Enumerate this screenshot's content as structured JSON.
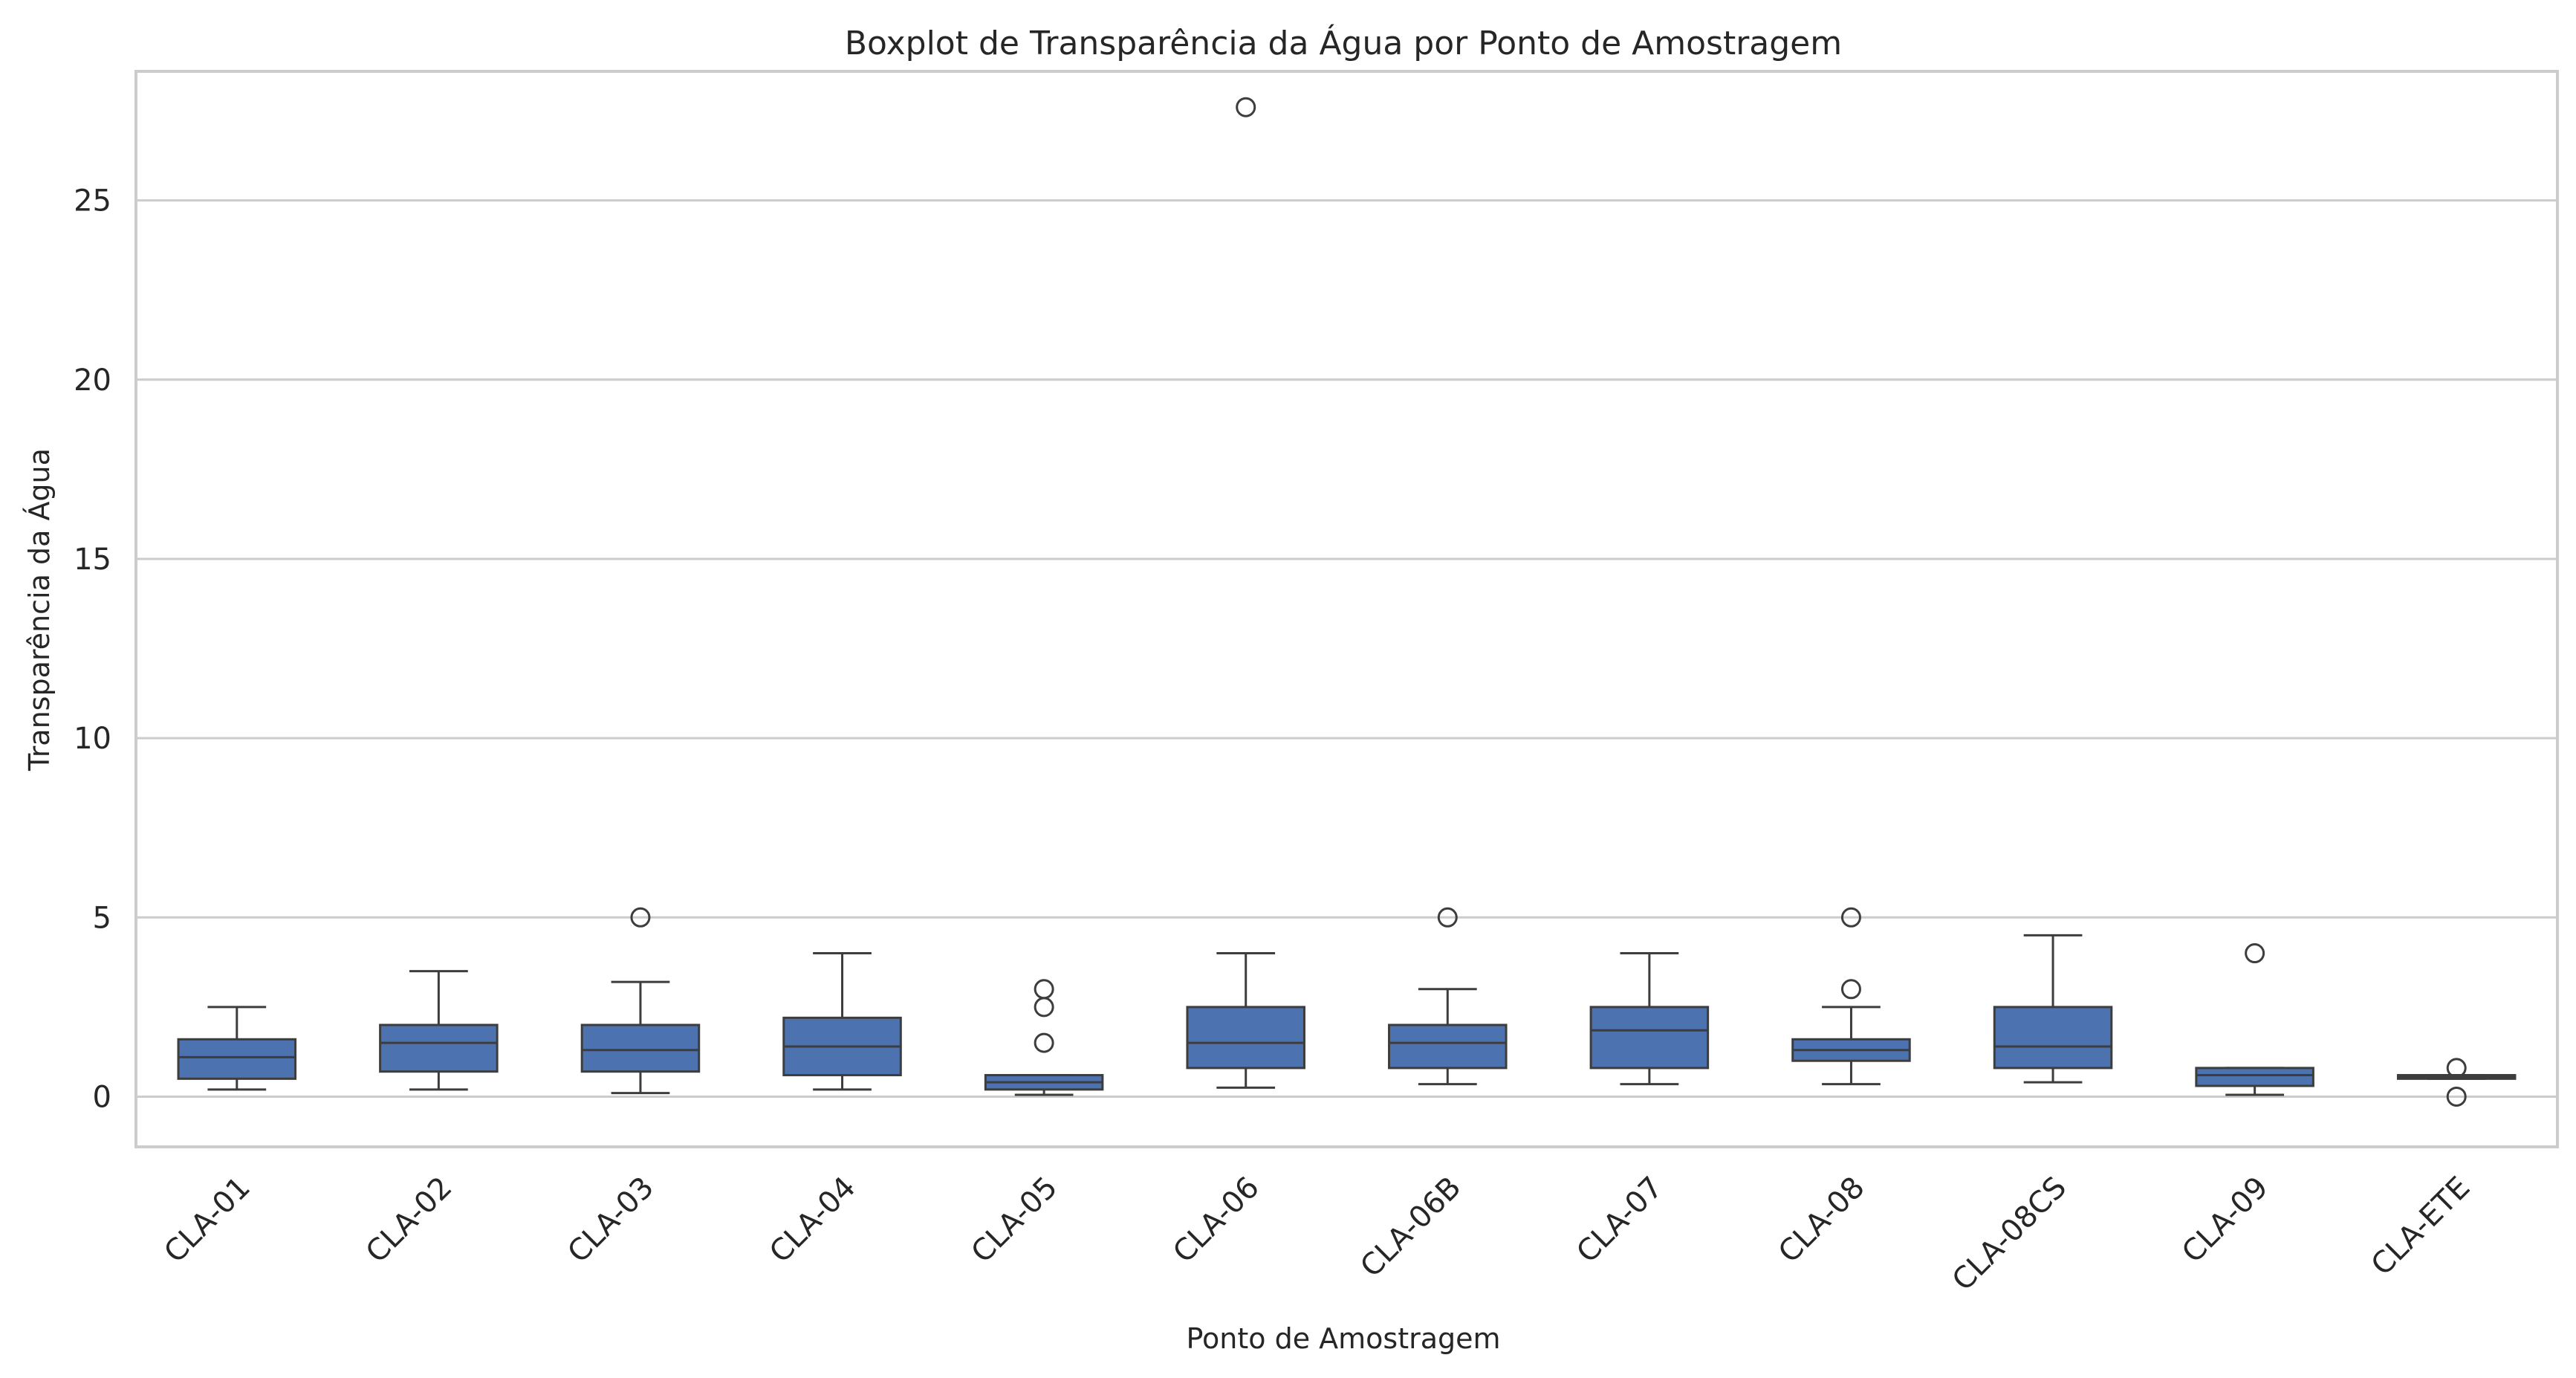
{
  "chart_data": {
    "type": "boxplot",
    "title": "Boxplot de Transparência da Água por Ponto de Amostragem",
    "xlabel": "Ponto de Amostragem",
    "ylabel": "Transparência da Água",
    "ylim": [
      -1.4,
      28.6
    ],
    "yticks": [
      0,
      5,
      10,
      15,
      20,
      25
    ],
    "grid": true,
    "box_color": "#4c72b0",
    "line_color": "#3d3d3d",
    "grid_color": "#cccccc",
    "categories": [
      "CLA-01",
      "CLA-02",
      "CLA-03",
      "CLA-04",
      "CLA-05",
      "CLA-06",
      "CLA-06B",
      "CLA-07",
      "CLA-08",
      "CLA-08CS",
      "CLA-09",
      "CLA-ETE"
    ],
    "boxes": [
      {
        "category": "CLA-01",
        "whisker_low": 0.2,
        "q1": 0.5,
        "median": 1.1,
        "q3": 1.6,
        "whisker_high": 2.5,
        "outliers": []
      },
      {
        "category": "CLA-02",
        "whisker_low": 0.2,
        "q1": 0.7,
        "median": 1.5,
        "q3": 2.0,
        "whisker_high": 3.5,
        "outliers": []
      },
      {
        "category": "CLA-03",
        "whisker_low": 0.1,
        "q1": 0.7,
        "median": 1.3,
        "q3": 2.0,
        "whisker_high": 3.2,
        "outliers": [
          5.0
        ]
      },
      {
        "category": "CLA-04",
        "whisker_low": 0.2,
        "q1": 0.6,
        "median": 1.4,
        "q3": 2.2,
        "whisker_high": 4.0,
        "outliers": []
      },
      {
        "category": "CLA-05",
        "whisker_low": 0.05,
        "q1": 0.2,
        "median": 0.4,
        "q3": 0.6,
        "whisker_high": 0.6,
        "outliers": [
          1.5,
          2.5,
          3.0
        ]
      },
      {
        "category": "CLA-06",
        "whisker_low": 0.25,
        "q1": 0.8,
        "median": 1.5,
        "q3": 2.5,
        "whisker_high": 4.0,
        "outliers": [
          27.6
        ]
      },
      {
        "category": "CLA-06B",
        "whisker_low": 0.35,
        "q1": 0.8,
        "median": 1.5,
        "q3": 2.0,
        "whisker_high": 3.0,
        "outliers": [
          5.0
        ]
      },
      {
        "category": "CLA-07",
        "whisker_low": 0.35,
        "q1": 0.8,
        "median": 1.85,
        "q3": 2.5,
        "whisker_high": 4.0,
        "outliers": []
      },
      {
        "category": "CLA-08",
        "whisker_low": 0.35,
        "q1": 1.0,
        "median": 1.3,
        "q3": 1.6,
        "whisker_high": 2.5,
        "outliers": [
          3.0,
          5.0
        ]
      },
      {
        "category": "CLA-08CS",
        "whisker_low": 0.4,
        "q1": 0.8,
        "median": 1.4,
        "q3": 2.5,
        "whisker_high": 4.5,
        "outliers": []
      },
      {
        "category": "CLA-09",
        "whisker_low": 0.05,
        "q1": 0.3,
        "median": 0.6,
        "q3": 0.8,
        "whisker_high": 0.8,
        "outliers": [
          4.0
        ]
      },
      {
        "category": "CLA-ETE",
        "whisker_low": 0.5,
        "q1": 0.5,
        "median": 0.55,
        "q3": 0.6,
        "whisker_high": 0.6,
        "outliers": [
          0.0,
          0.8
        ]
      }
    ]
  }
}
